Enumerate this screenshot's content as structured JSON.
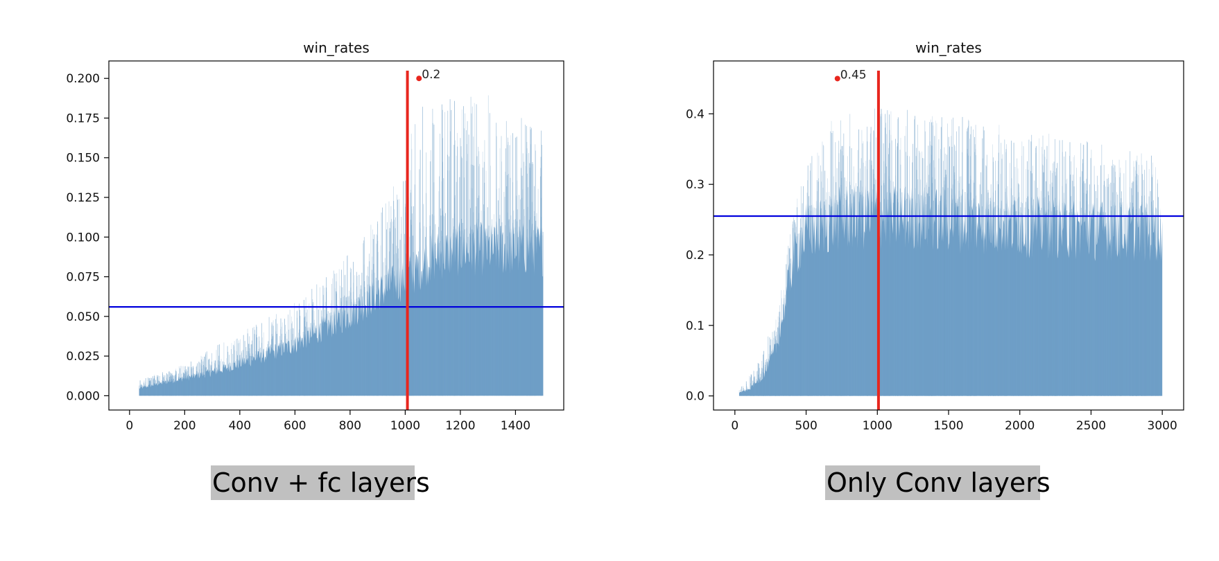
{
  "chart_data": [
    {
      "type": "area",
      "title": "win_rates",
      "xlabel": "",
      "ylabel": "",
      "xlim": [
        -75,
        1575
      ],
      "ylim": [
        -0.009,
        0.211
      ],
      "xticks": [
        0,
        200,
        400,
        600,
        800,
        1000,
        1200,
        1400
      ],
      "xtick_labels": [
        "0",
        "200",
        "400",
        "600",
        "800",
        "1000",
        "1200",
        "1400"
      ],
      "yticks": [
        0.0,
        0.025,
        0.05,
        0.075,
        0.1,
        0.125,
        0.15,
        0.175,
        0.2
      ],
      "ytick_labels": [
        "0.000",
        "0.025",
        "0.050",
        "0.075",
        "0.100",
        "0.125",
        "0.150",
        "0.175",
        "0.200"
      ],
      "series_color": "#6f9fc7",
      "x_range": [
        35,
        1500
      ],
      "envelope": [
        [
          35,
          0.005
        ],
        [
          100,
          0.008
        ],
        [
          200,
          0.012
        ],
        [
          300,
          0.016
        ],
        [
          400,
          0.022
        ],
        [
          500,
          0.028
        ],
        [
          600,
          0.035
        ],
        [
          700,
          0.045
        ],
        [
          800,
          0.055
        ],
        [
          900,
          0.07
        ],
        [
          1000,
          0.08
        ],
        [
          1100,
          0.095
        ],
        [
          1200,
          0.1
        ],
        [
          1300,
          0.1
        ],
        [
          1400,
          0.1
        ],
        [
          1500,
          0.1
        ]
      ],
      "peak_envelope": [
        [
          35,
          0.01
        ],
        [
          200,
          0.02
        ],
        [
          400,
          0.04
        ],
        [
          600,
          0.06
        ],
        [
          800,
          0.09
        ],
        [
          950,
          0.13
        ],
        [
          1050,
          0.19
        ],
        [
          1150,
          0.19
        ],
        [
          1300,
          0.19
        ],
        [
          1500,
          0.17
        ]
      ],
      "mean_line": {
        "value": 0.056,
        "color": "#0000dd"
      },
      "vertical_line": {
        "x": 1008,
        "color": "#e8261e"
      },
      "max_point": {
        "x": 1050,
        "y": 0.2,
        "label": "0.2",
        "color": "#e8261e"
      }
    },
    {
      "type": "area",
      "title": "win_rates",
      "xlabel": "",
      "ylabel": "",
      "xlim": [
        -150,
        3150
      ],
      "ylim": [
        -0.02,
        0.475
      ],
      "xticks": [
        0,
        500,
        1000,
        1500,
        2000,
        2500,
        3000
      ],
      "xtick_labels": [
        "0",
        "500",
        "1000",
        "1500",
        "2000",
        "2500",
        "3000"
      ],
      "yticks": [
        0.0,
        0.1,
        0.2,
        0.3,
        0.4
      ],
      "ytick_labels": [
        "0.0",
        "0.1",
        "0.2",
        "0.3",
        "0.4"
      ],
      "series_color": "#6f9fc7",
      "x_range": [
        30,
        3000
      ],
      "envelope": [
        [
          30,
          0.005
        ],
        [
          100,
          0.01
        ],
        [
          200,
          0.03
        ],
        [
          300,
          0.08
        ],
        [
          350,
          0.14
        ],
        [
          400,
          0.2
        ],
        [
          450,
          0.23
        ],
        [
          500,
          0.25
        ],
        [
          700,
          0.27
        ],
        [
          1000,
          0.275
        ],
        [
          1500,
          0.27
        ],
        [
          2000,
          0.26
        ],
        [
          2500,
          0.255
        ],
        [
          3000,
          0.25
        ]
      ],
      "peak_envelope": [
        [
          30,
          0.012
        ],
        [
          150,
          0.04
        ],
        [
          300,
          0.12
        ],
        [
          400,
          0.25
        ],
        [
          500,
          0.33
        ],
        [
          700,
          0.4
        ],
        [
          1000,
          0.41
        ],
        [
          1500,
          0.4
        ],
        [
          2000,
          0.38
        ],
        [
          2500,
          0.36
        ],
        [
          3000,
          0.34
        ]
      ],
      "mean_line": {
        "value": 0.255,
        "color": "#0000dd"
      },
      "vertical_line": {
        "x": 1008,
        "color": "#e8261e"
      },
      "max_point": {
        "x": 720,
        "y": 0.45,
        "label": "0.45",
        "color": "#e8261e"
      }
    }
  ],
  "captions": {
    "left": "Conv + fc layers",
    "right": "Only Conv layers"
  }
}
